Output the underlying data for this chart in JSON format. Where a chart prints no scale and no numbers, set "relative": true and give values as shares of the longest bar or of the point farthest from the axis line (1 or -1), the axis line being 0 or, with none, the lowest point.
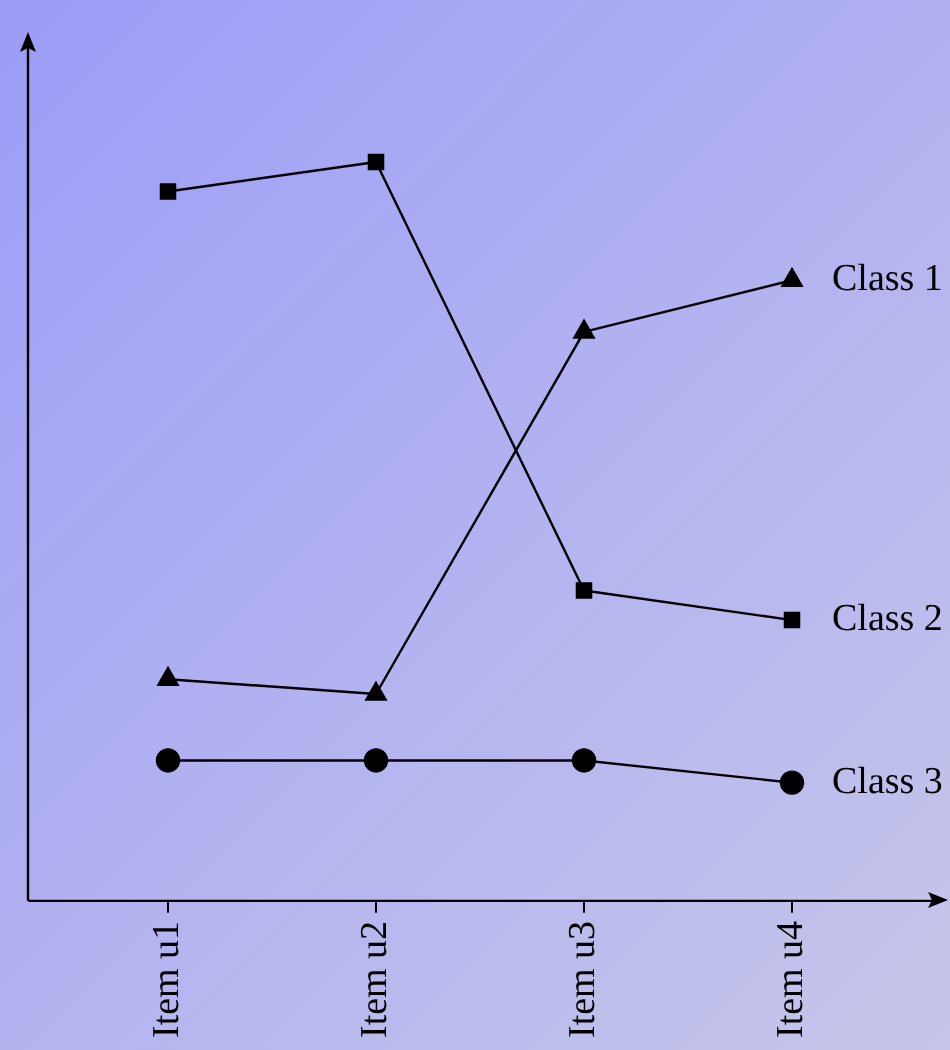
{
  "chart_data": {
    "type": "line",
    "relative": true,
    "legend": false,
    "grid": false,
    "line_style": "solid",
    "categories": [
      "Item u1",
      "Item u2",
      "Item u3",
      "Item u4"
    ],
    "series": [
      {
        "name": "Class 1",
        "color": "#000000",
        "marker": "triangle",
        "values": [
          0.3,
          0.28,
          0.77,
          0.84
        ]
      },
      {
        "name": "Class 2",
        "color": "#000000",
        "marker": "square",
        "values": [
          0.96,
          1,
          0.42,
          0.38
        ]
      },
      {
        "name": "Class 3",
        "color": "#000000",
        "marker": "circle",
        "values": [
          0.19,
          0.19,
          0.19,
          0.16
        ]
      }
    ]
  }
}
